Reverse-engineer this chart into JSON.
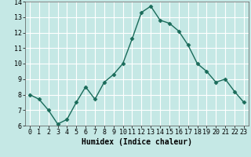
{
  "x": [
    0,
    1,
    2,
    3,
    4,
    5,
    6,
    7,
    8,
    9,
    10,
    11,
    12,
    13,
    14,
    15,
    16,
    17,
    18,
    19,
    20,
    21,
    22,
    23
  ],
  "y": [
    8.0,
    7.7,
    7.0,
    6.1,
    6.4,
    7.5,
    8.5,
    7.7,
    8.8,
    9.3,
    10.0,
    11.6,
    13.3,
    13.7,
    12.8,
    12.6,
    12.1,
    11.2,
    10.0,
    9.5,
    8.8,
    9.0,
    8.2,
    7.5
  ],
  "xlabel": "Humidex (Indice chaleur)",
  "ylim": [
    6,
    14
  ],
  "xlim_min": -0.5,
  "xlim_max": 23.5,
  "yticks": [
    6,
    7,
    8,
    9,
    10,
    11,
    12,
    13,
    14
  ],
  "xticks": [
    0,
    1,
    2,
    3,
    4,
    5,
    6,
    7,
    8,
    9,
    10,
    11,
    12,
    13,
    14,
    15,
    16,
    17,
    18,
    19,
    20,
    21,
    22,
    23
  ],
  "line_color": "#1a6b5a",
  "marker": "D",
  "marker_size": 2.5,
  "bg_color": "#c5e8e5",
  "grid_color": "#ffffff",
  "label_fontsize": 7,
  "tick_fontsize": 6,
  "linewidth": 1.0
}
